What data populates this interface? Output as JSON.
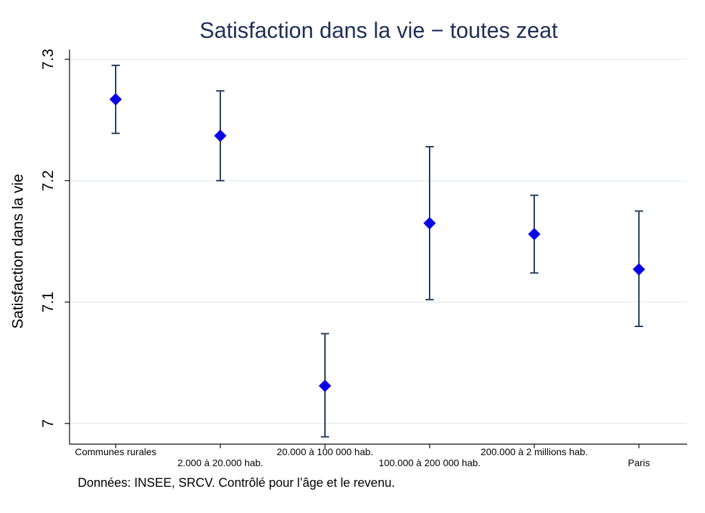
{
  "chart_data": {
    "type": "scatter",
    "title": "Satisfaction dans la vie − toutes zeat",
    "xlabel": "",
    "ylabel": "Satisfaction dans la vie",
    "note": "Données: INSEE, SRCV. Contrôlé pour l’âge et le revenu.",
    "categories": [
      "Communes rurales",
      "2.000 à 20.000 hab.",
      "20.000 à 100 000 hab.",
      "100.000 à 200 000 hab.",
      "200.000 à 2 millions hab.",
      "Paris"
    ],
    "values": [
      7.267,
      7.237,
      7.031,
      7.165,
      7.156,
      7.127
    ],
    "ci_low": [
      7.239,
      7.2,
      6.989,
      7.102,
      7.124,
      7.08
    ],
    "ci_high": [
      7.295,
      7.274,
      7.074,
      7.228,
      7.188,
      7.175
    ],
    "ylim": [
      6.983,
      7.308
    ],
    "yticks": [
      "7",
      "7.1",
      "7.2",
      "7.3"
    ],
    "grid": true,
    "marker_color": "#0a00e6",
    "errorbar_color": "#1f3b5c",
    "grid_color": "#e9eef2"
  }
}
